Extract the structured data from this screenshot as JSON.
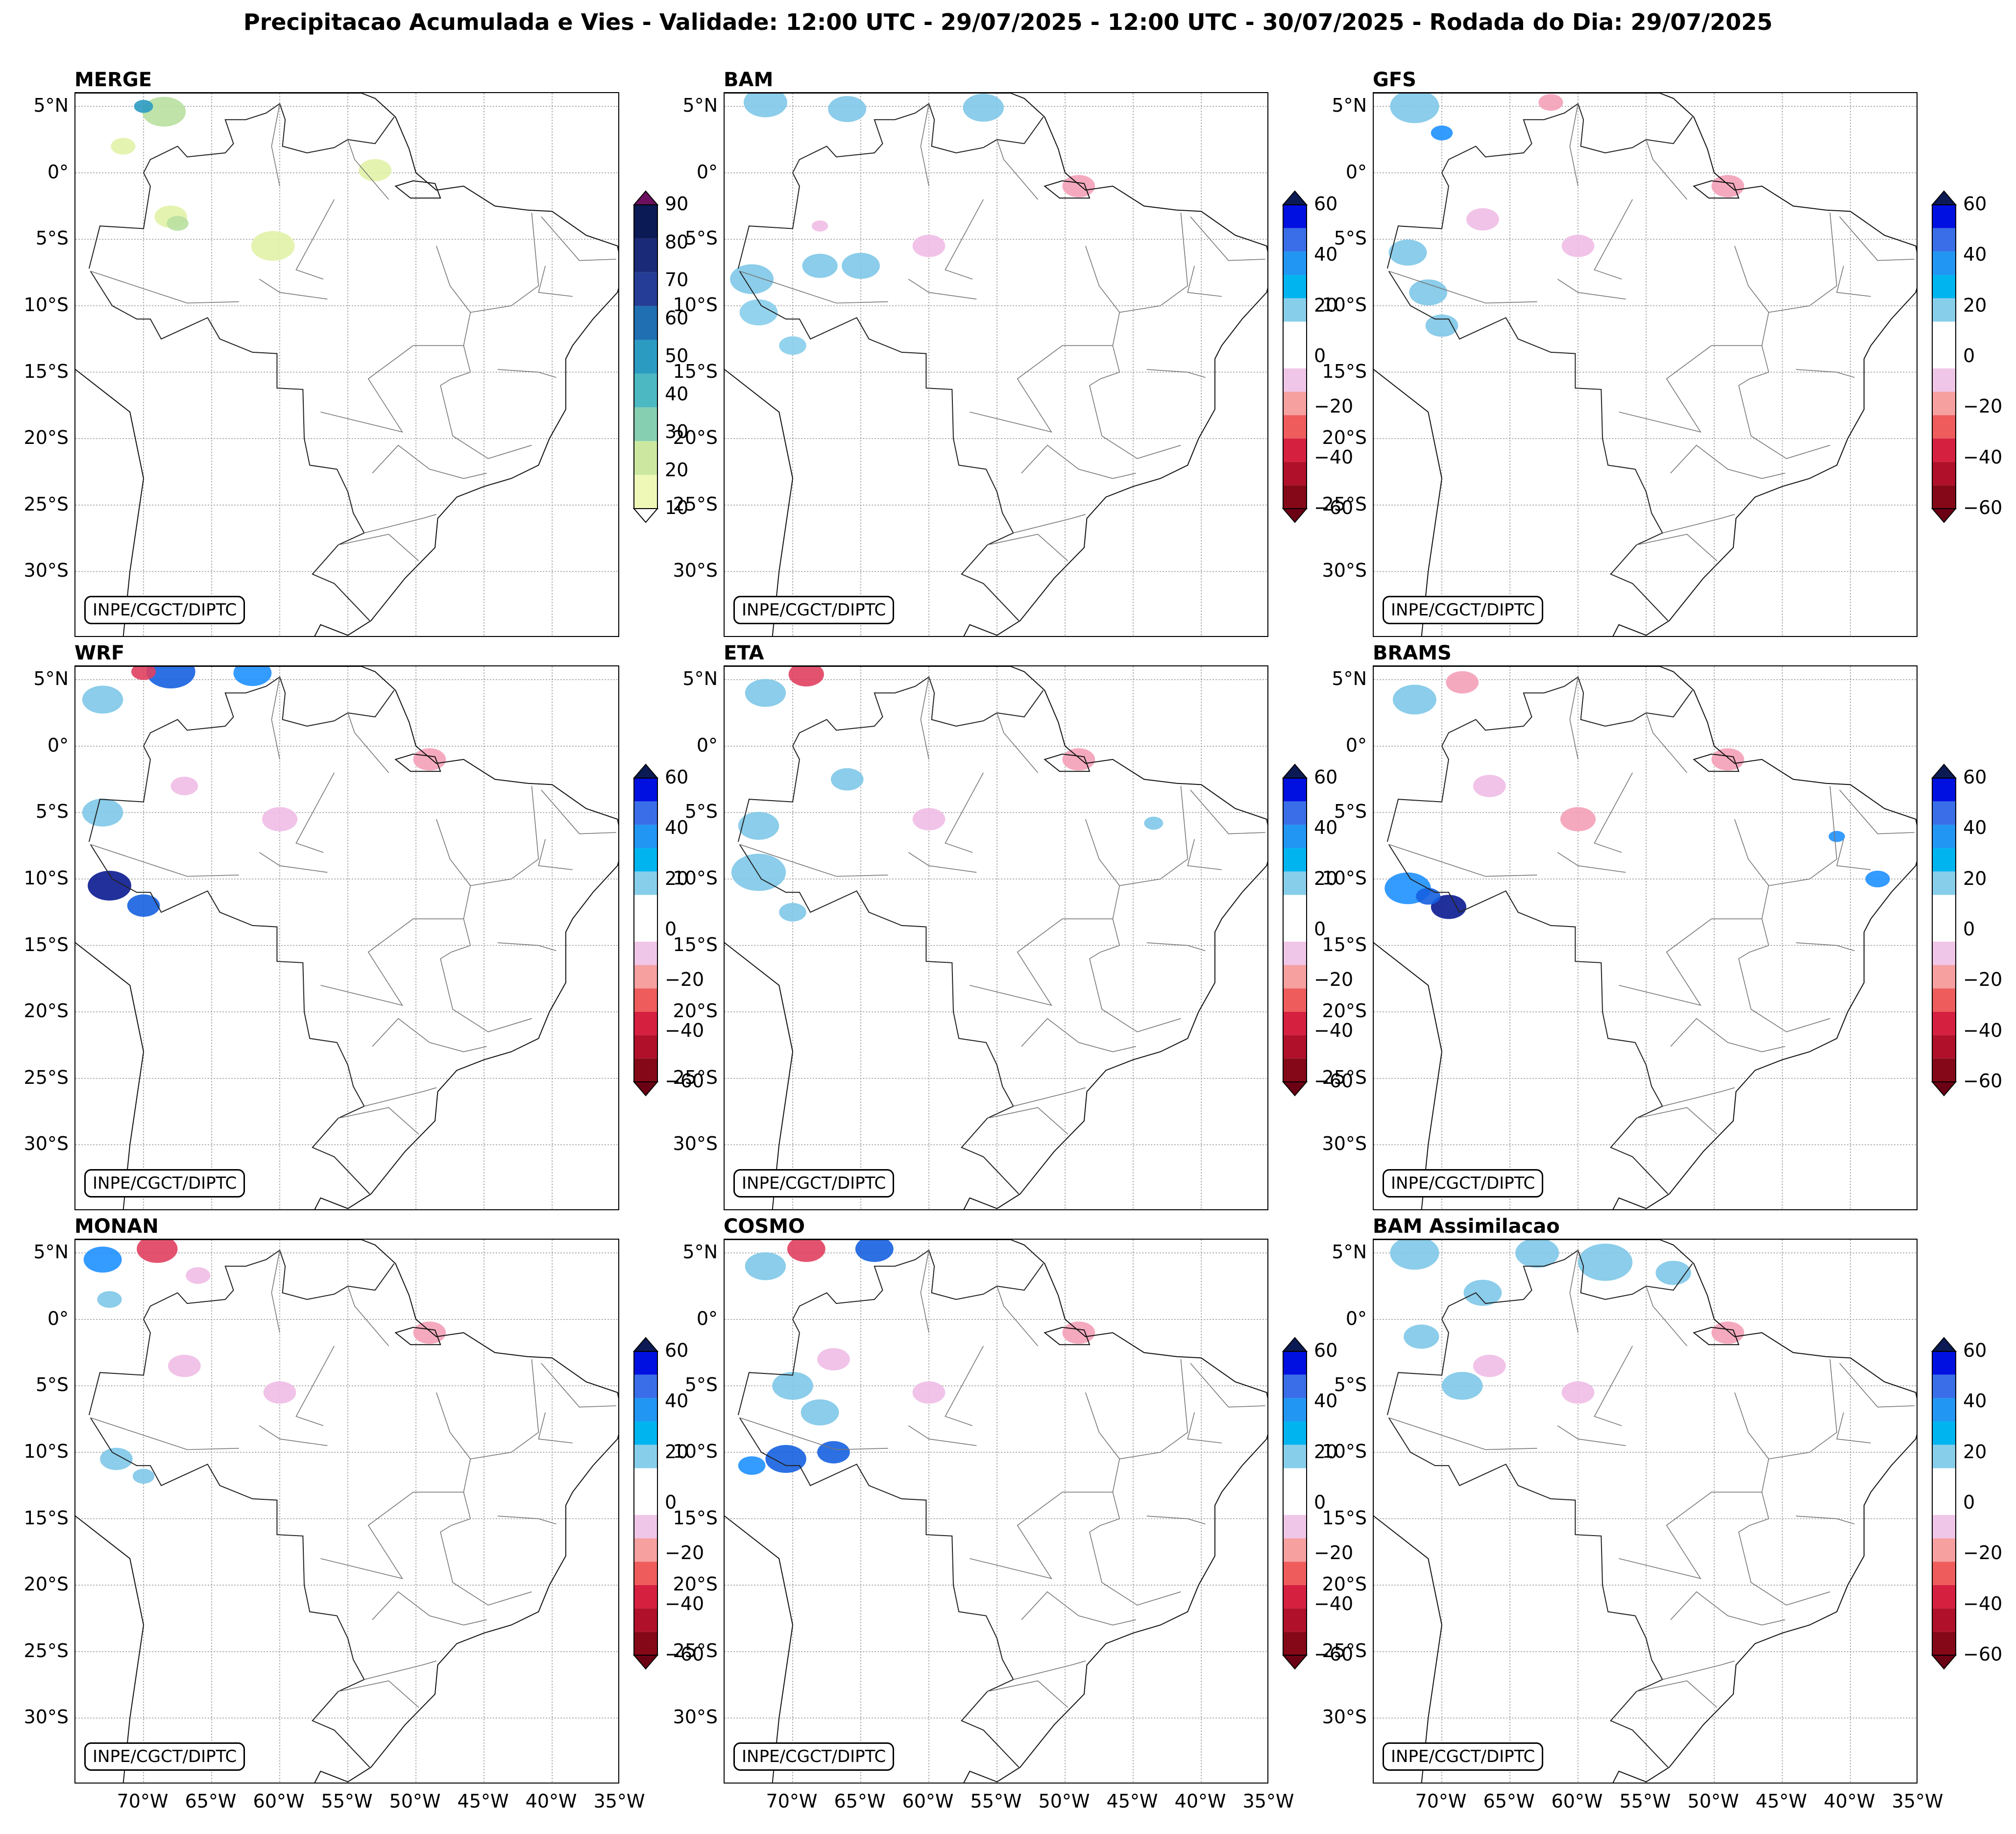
{
  "title": "Precipitacao Acumulada e Vies - Validade: 12:00 UTC - 29/07/2025 - 12:00 UTC - 30/07/2025 - Rodada do Dia: 29/07/2025",
  "credit": "INPE/CGCT/DIPTC",
  "lat_labels": [
    "5°N",
    "0°",
    "5°S",
    "10°S",
    "15°S",
    "20°S",
    "25°S",
    "30°S"
  ],
  "lon_labels": [
    "70°W",
    "65°W",
    "60°W",
    "55°W",
    "50°W",
    "45°W",
    "40°W",
    "35°W"
  ],
  "colorbars": {
    "precip": {
      "ticks": [
        "10",
        "20",
        "30",
        "40",
        "50",
        "60",
        "70",
        "80",
        "90"
      ],
      "colors": [
        "#f0f8b8",
        "#cce8a0",
        "#86cfb0",
        "#4bb8c2",
        "#2c9bc2",
        "#1f6fb2",
        "#253d96",
        "#1b2a78",
        "#0b1a55"
      ],
      "extend_over": "#6b0f5e"
    },
    "bias": {
      "ticks": [
        "60",
        "40",
        "20",
        "0",
        "−20",
        "−40",
        "−60"
      ],
      "colors": [
        "#0010e0",
        "#3a6ee8",
        "#2196f3",
        "#00b4f0",
        "#87ceeb",
        "#ffffff",
        "#ffffff",
        "#f0c6e8",
        "#f7a0a0",
        "#ee5c5c",
        "#d62040",
        "#b0102a",
        "#850818"
      ],
      "extend_over": "#0b1a55",
      "extend_under": "#6b0015"
    }
  },
  "panels": [
    {
      "id": "merge",
      "title": "MERGE",
      "cbar": "precip"
    },
    {
      "id": "bam",
      "title": "BAM",
      "cbar": "bias"
    },
    {
      "id": "gfs",
      "title": "GFS",
      "cbar": "bias"
    },
    {
      "id": "wrf",
      "title": "WRF",
      "cbar": "bias"
    },
    {
      "id": "eta",
      "title": "ETA",
      "cbar": "bias"
    },
    {
      "id": "brams",
      "title": "BRAMS",
      "cbar": "bias"
    },
    {
      "id": "monan",
      "title": "MONAN",
      "cbar": "bias"
    },
    {
      "id": "cosmo",
      "title": "COSMO",
      "cbar": "bias"
    },
    {
      "id": "bam-assim",
      "title": "BAM Assimilacao",
      "cbar": "bias"
    }
  ]
}
